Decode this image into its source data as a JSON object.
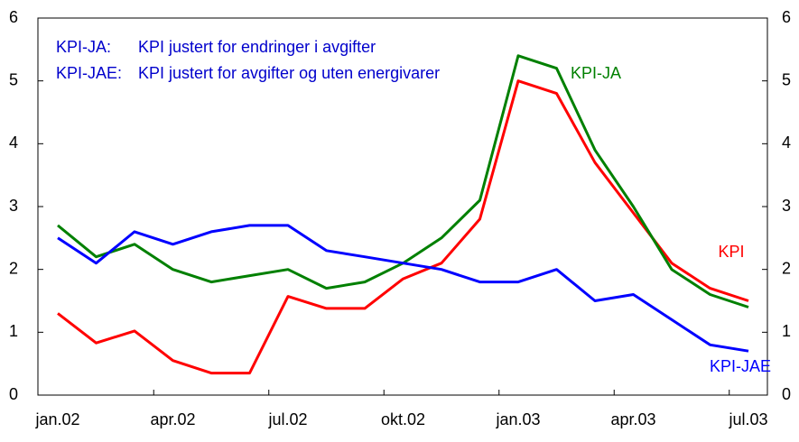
{
  "chart_data": {
    "type": "line",
    "categories": [
      "jan.02",
      null,
      null,
      "apr.02",
      null,
      null,
      "jul.02",
      null,
      null,
      "okt.02",
      null,
      null,
      "jan.03",
      null,
      null,
      "apr.03",
      null,
      null,
      "jul.03"
    ],
    "series": [
      {
        "name": "KPI",
        "color": "#ff0000",
        "values": [
          1.3,
          0.83,
          1.02,
          0.55,
          0.35,
          0.35,
          1.57,
          1.38,
          1.38,
          1.85,
          2.1,
          2.8,
          5.0,
          4.8,
          3.7,
          2.9,
          2.1,
          1.7,
          1.5
        ]
      },
      {
        "name": "KPI-JA",
        "color": "#008000",
        "values": [
          2.7,
          2.2,
          2.4,
          2.0,
          1.8,
          1.9,
          2.0,
          1.7,
          1.8,
          2.1,
          2.5,
          3.1,
          5.4,
          5.2,
          3.9,
          3.0,
          2.0,
          1.6,
          1.4
        ]
      },
      {
        "name": "KPI-JAE",
        "color": "#0000ff",
        "values": [
          2.5,
          2.1,
          2.6,
          2.4,
          2.6,
          2.7,
          2.7,
          2.3,
          2.2,
          2.1,
          2.0,
          1.8,
          1.8,
          2.0,
          1.5,
          1.6,
          1.2,
          0.8,
          0.7
        ]
      }
    ],
    "annotations": [
      {
        "term": "KPI-JA:",
        "text": "KPI justert for endringer i avgifter"
      },
      {
        "term": "KPI-JAE:",
        "text": "KPI justert for avgifter og uten energivarer"
      }
    ],
    "ylim": [
      0,
      6
    ],
    "yticks": [
      0,
      1,
      2,
      3,
      4,
      5,
      6
    ],
    "y2lim": [
      0,
      6
    ],
    "y2ticks": [
      0,
      1,
      2,
      3,
      4,
      5,
      6
    ],
    "grid": false
  }
}
